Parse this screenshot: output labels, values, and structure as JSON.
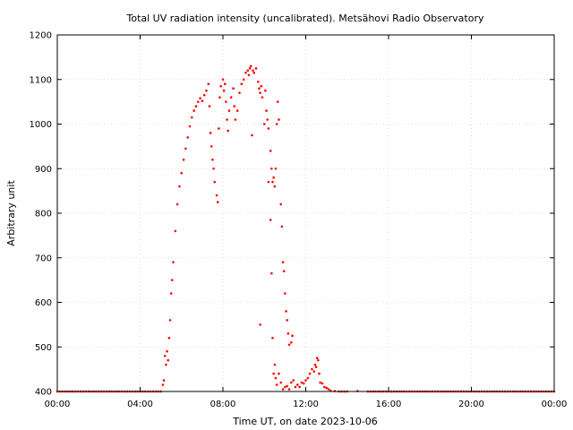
{
  "chart_data": {
    "type": "scatter",
    "title": "Total UV radiation intensity (uncalibrated). Metsähovi Radio Observatory",
    "xlabel": "Time UT, on date 2023-10-06",
    "ylabel": "Arbitrary unit",
    "xlim": [
      0,
      24
    ],
    "ylim": [
      400,
      1200
    ],
    "x_ticks": [
      {
        "value": 0,
        "label": "00:00"
      },
      {
        "value": 4,
        "label": "04:00"
      },
      {
        "value": 8,
        "label": "08:00"
      },
      {
        "value": 12,
        "label": "12:00"
      },
      {
        "value": 16,
        "label": "16:00"
      },
      {
        "value": 20,
        "label": "20:00"
      },
      {
        "value": 24,
        "label": "00:00"
      }
    ],
    "y_ticks": [
      400,
      500,
      600,
      700,
      800,
      900,
      1000,
      1100,
      1200
    ],
    "grid": true,
    "marker_color": "#ff0000",
    "series": [
      {
        "points": [
          [
            0.0,
            400
          ],
          [
            0.5,
            400
          ],
          [
            1.0,
            400
          ],
          [
            1.5,
            400
          ],
          [
            2.0,
            400
          ],
          [
            2.5,
            400
          ],
          [
            3.0,
            400
          ],
          [
            3.5,
            400
          ],
          [
            4.0,
            400
          ],
          [
            4.5,
            400
          ],
          [
            5.0,
            400
          ],
          [
            5.1,
            415
          ],
          [
            5.15,
            425
          ],
          [
            5.2,
            480
          ],
          [
            5.25,
            460
          ],
          [
            5.3,
            490
          ],
          [
            5.35,
            470
          ],
          [
            5.4,
            520
          ],
          [
            5.45,
            560
          ],
          [
            5.5,
            620
          ],
          [
            5.55,
            650
          ],
          [
            5.6,
            690
          ],
          [
            5.7,
            760
          ],
          [
            5.8,
            820
          ],
          [
            5.9,
            860
          ],
          [
            6.0,
            890
          ],
          [
            6.1,
            920
          ],
          [
            6.2,
            945
          ],
          [
            6.3,
            970
          ],
          [
            6.4,
            995
          ],
          [
            6.5,
            1015
          ],
          [
            6.6,
            1030
          ],
          [
            6.7,
            1040
          ],
          [
            6.8,
            1050
          ],
          [
            6.9,
            1058
          ],
          [
            7.0,
            1052
          ],
          [
            7.1,
            1065
          ],
          [
            7.2,
            1075
          ],
          [
            7.3,
            1090
          ],
          [
            7.35,
            1040
          ],
          [
            7.4,
            980
          ],
          [
            7.45,
            950
          ],
          [
            7.5,
            920
          ],
          [
            7.55,
            900
          ],
          [
            7.6,
            870
          ],
          [
            7.7,
            840
          ],
          [
            7.75,
            825
          ],
          [
            7.8,
            990
          ],
          [
            7.85,
            1060
          ],
          [
            7.9,
            1085
          ],
          [
            8.0,
            1100
          ],
          [
            8.05,
            1075
          ],
          [
            8.1,
            1090
          ],
          [
            8.15,
            1050
          ],
          [
            8.2,
            1010
          ],
          [
            8.25,
            985
          ],
          [
            8.3,
            1030
          ],
          [
            8.4,
            1060
          ],
          [
            8.5,
            1080
          ],
          [
            8.55,
            1040
          ],
          [
            8.6,
            1010
          ],
          [
            8.7,
            1030
          ],
          [
            8.8,
            1070
          ],
          [
            8.9,
            1090
          ],
          [
            9.0,
            1100
          ],
          [
            9.1,
            1115
          ],
          [
            9.2,
            1120
          ],
          [
            9.25,
            1110
          ],
          [
            9.3,
            1125
          ],
          [
            9.35,
            1130
          ],
          [
            9.4,
            975
          ],
          [
            9.45,
            1120
          ],
          [
            9.5,
            1115
          ],
          [
            9.6,
            1125
          ],
          [
            9.7,
            1095
          ],
          [
            9.75,
            1080
          ],
          [
            9.8,
            1070
          ],
          [
            9.85,
            1085
          ],
          [
            9.9,
            1060
          ],
          [
            10.0,
            1000
          ],
          [
            10.05,
            1075
          ],
          [
            10.1,
            1030
          ],
          [
            10.15,
            1010
          ],
          [
            10.2,
            990
          ],
          [
            10.3,
            940
          ],
          [
            10.35,
            900
          ],
          [
            10.4,
            870
          ],
          [
            10.45,
            880
          ],
          [
            10.5,
            860
          ],
          [
            10.55,
            900
          ],
          [
            10.6,
            1000
          ],
          [
            10.65,
            1050
          ],
          [
            10.7,
            1010
          ],
          [
            10.8,
            820
          ],
          [
            10.85,
            770
          ],
          [
            10.9,
            690
          ],
          [
            10.95,
            670
          ],
          [
            11.0,
            620
          ],
          [
            11.05,
            580
          ],
          [
            11.1,
            560
          ],
          [
            11.15,
            530
          ],
          [
            11.2,
            505
          ],
          [
            11.3,
            510
          ],
          [
            11.35,
            525
          ],
          [
            9.8,
            550
          ],
          [
            10.2,
            870
          ],
          [
            10.3,
            785
          ],
          [
            10.35,
            665
          ],
          [
            10.4,
            520
          ],
          [
            10.45,
            440
          ],
          [
            10.5,
            460
          ],
          [
            10.55,
            430
          ],
          [
            10.6,
            415
          ],
          [
            10.7,
            440
          ],
          [
            10.8,
            420
          ],
          [
            10.9,
            405
          ],
          [
            11.0,
            410
          ],
          [
            11.1,
            412
          ],
          [
            11.2,
            405
          ],
          [
            11.3,
            420
          ],
          [
            11.4,
            425
          ],
          [
            11.5,
            410
          ],
          [
            11.6,
            415
          ],
          [
            11.7,
            410
          ],
          [
            11.8,
            420
          ],
          [
            11.9,
            418
          ],
          [
            12.0,
            425
          ],
          [
            12.1,
            430
          ],
          [
            12.2,
            440
          ],
          [
            12.3,
            450
          ],
          [
            12.4,
            445
          ],
          [
            12.45,
            460
          ],
          [
            12.5,
            455
          ],
          [
            12.55,
            475
          ],
          [
            12.6,
            470
          ],
          [
            12.65,
            440
          ],
          [
            12.7,
            420
          ],
          [
            12.8,
            418
          ],
          [
            12.9,
            410
          ],
          [
            13.0,
            408
          ],
          [
            13.1,
            405
          ],
          [
            13.2,
            402
          ],
          [
            13.4,
            401
          ],
          [
            13.6,
            400
          ],
          [
            14.0,
            400
          ],
          [
            14.5,
            401
          ],
          [
            15.0,
            400
          ],
          [
            16.0,
            400
          ],
          [
            17.0,
            400
          ],
          [
            18.0,
            400
          ],
          [
            19.0,
            400
          ],
          [
            20.0,
            400
          ],
          [
            21.0,
            400
          ],
          [
            22.0,
            400
          ],
          [
            23.0,
            400
          ],
          [
            24.0,
            400
          ]
        ]
      }
    ]
  }
}
